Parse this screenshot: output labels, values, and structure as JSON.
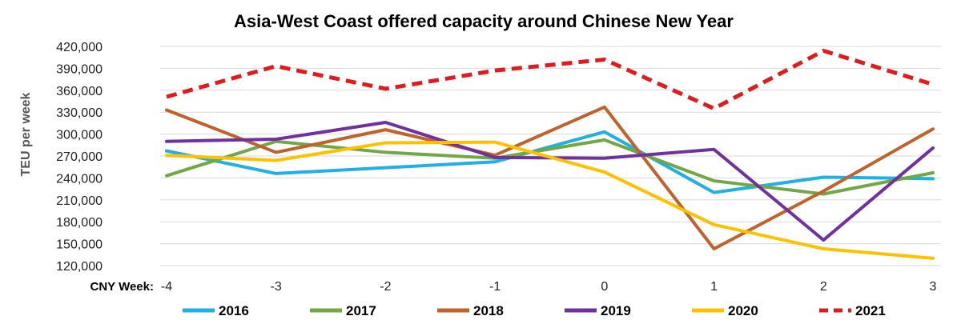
{
  "chart_data": {
    "type": "line",
    "title": "Asia-West Coast offered capacity around Chinese New Year",
    "ylabel": "TEU per week",
    "xlabel_prefix": "CNY Week:",
    "x": [
      "-4",
      "-3",
      "-2",
      "-1",
      "0",
      "1",
      "2",
      "3"
    ],
    "ylim": [
      120000,
      420000
    ],
    "yticks": [
      120000,
      150000,
      180000,
      210000,
      240000,
      270000,
      300000,
      330000,
      360000,
      390000,
      420000
    ],
    "ytick_labels": [
      "120,000",
      "150,000",
      "180,000",
      "210,000",
      "240,000",
      "270,000",
      "300,000",
      "330,000",
      "360,000",
      "390,000",
      "420,000"
    ],
    "grid": true,
    "legend_position": "bottom",
    "series": [
      {
        "name": "2016",
        "color": "#1fb0e6",
        "dashed": false,
        "values": [
          277000,
          246000,
          254000,
          262000,
          303000,
          220000,
          241000,
          239000
        ]
      },
      {
        "name": "2017",
        "color": "#70a845",
        "dashed": false,
        "values": [
          243000,
          290000,
          275000,
          267000,
          292000,
          236000,
          218000,
          247000
        ]
      },
      {
        "name": "2018",
        "color": "#c0622a",
        "dashed": false,
        "values": [
          333000,
          275000,
          306000,
          271000,
          337000,
          143000,
          222000,
          307000
        ]
      },
      {
        "name": "2019",
        "color": "#7030a0",
        "dashed": false,
        "values": [
          290000,
          293000,
          316000,
          268000,
          267000,
          279000,
          155000,
          281000
        ]
      },
      {
        "name": "2020",
        "color": "#ffc000",
        "dashed": false,
        "values": [
          271000,
          264000,
          288000,
          289000,
          248000,
          176000,
          143000,
          130000
        ]
      },
      {
        "name": "2021",
        "color": "#e31a1c",
        "dashed": true,
        "values": [
          351000,
          393000,
          362000,
          387000,
          402000,
          335000,
          414000,
          368000
        ]
      }
    ]
  }
}
